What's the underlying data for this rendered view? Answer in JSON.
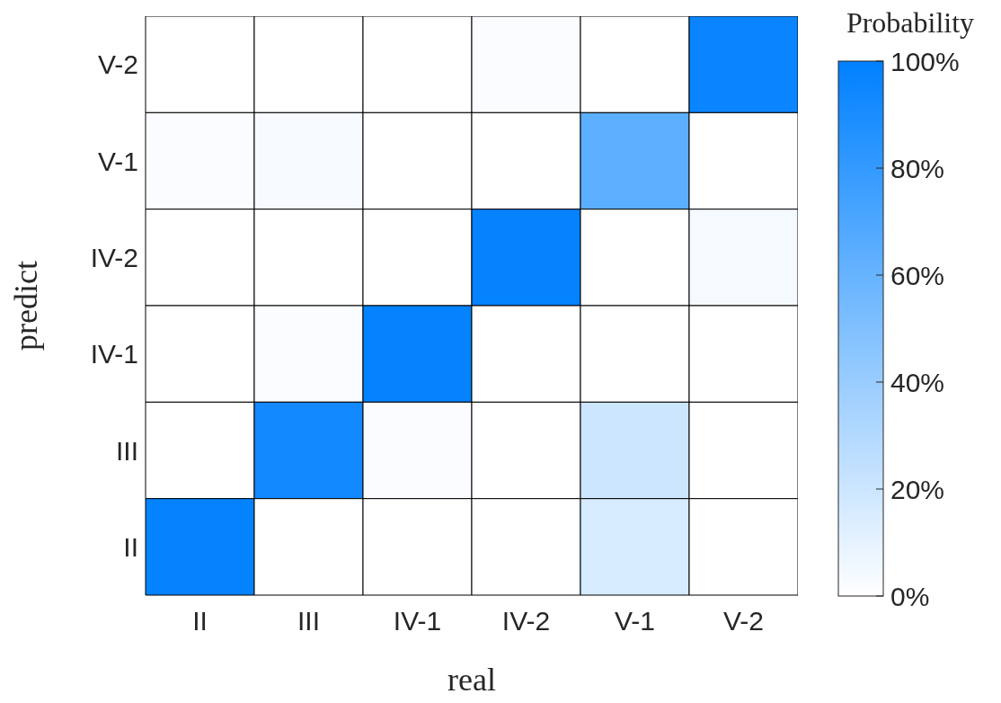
{
  "chart_data": {
    "type": "heatmap",
    "xlabel": "real",
    "ylabel": "predict",
    "clabel": "Probability",
    "categories": [
      "II",
      "III",
      "IV-1",
      "IV-2",
      "V-1",
      "V-2"
    ],
    "y_categories": [
      "V-2",
      "V-1",
      "IV-2",
      "IV-1",
      "III",
      "II"
    ],
    "cells": [
      [
        0,
        0,
        0,
        2,
        0,
        96
      ],
      [
        2,
        3,
        0,
        0,
        64,
        0
      ],
      [
        0,
        0,
        0,
        98,
        0,
        4
      ],
      [
        0,
        2,
        98,
        0,
        0,
        0
      ],
      [
        0,
        93,
        2,
        0,
        20,
        0
      ],
      [
        98,
        0,
        0,
        0,
        16,
        0
      ]
    ],
    "clim": [
      0,
      100
    ],
    "cticks": [
      {
        "value": 0,
        "label": "0%"
      },
      {
        "value": 20,
        "label": "20%"
      },
      {
        "value": 40,
        "label": "40%"
      },
      {
        "value": 60,
        "label": "60%"
      },
      {
        "value": 80,
        "label": "80%"
      },
      {
        "value": 100,
        "label": "100%"
      }
    ]
  }
}
